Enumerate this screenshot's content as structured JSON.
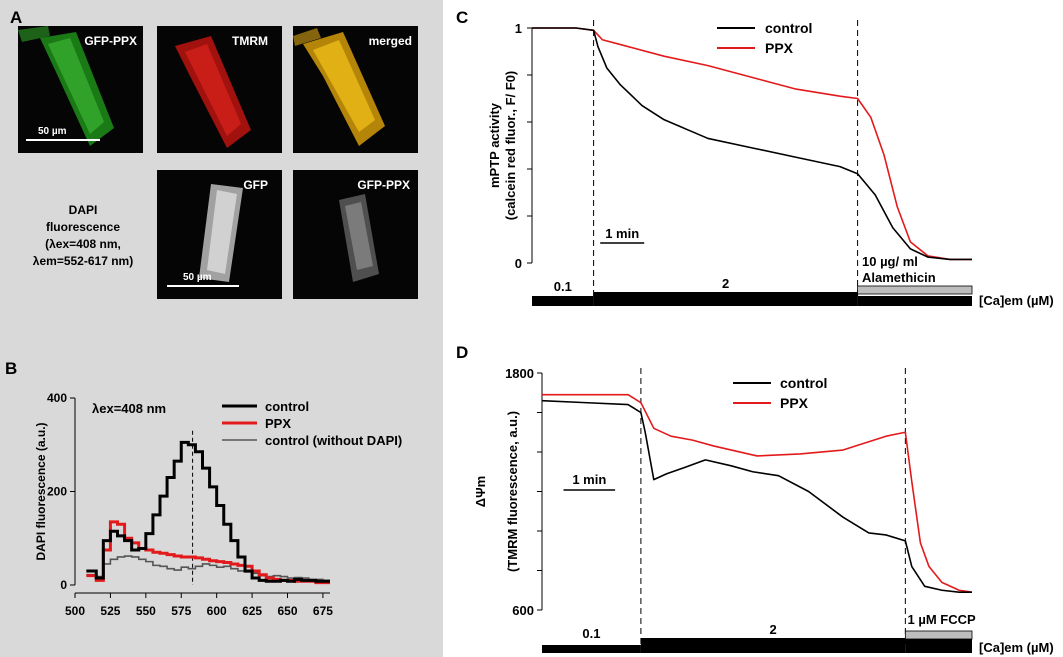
{
  "panels": {
    "a": "A",
    "b": "B",
    "c": "C",
    "d": "D"
  },
  "panelA": {
    "images": [
      {
        "caption": "GFP-PPX",
        "color": "#2fae22",
        "scale": "50  µm"
      },
      {
        "caption": "TMRM",
        "color": "#d11a16"
      },
      {
        "caption": "merged",
        "color": "#e8b30e"
      },
      {
        "caption": "GFP",
        "color": "#dddddd",
        "scale": "50  µm"
      },
      {
        "caption": "GFP-PPX",
        "color": "#8a8a8a"
      }
    ],
    "dapi_lines": [
      "DAPI",
      "fluorescence",
      "(λex=408  nm,",
      "λem=552-617  nm)"
    ]
  },
  "chart_data": [
    {
      "id": "B",
      "type": "line",
      "xlabel": "",
      "ylabel": "DAPI  fluorescence  (a.u.)",
      "annotation": "λex=408  nm",
      "xlim": [
        500,
        680
      ],
      "ylim": [
        0,
        400
      ],
      "xticks": [
        500,
        525,
        550,
        575,
        600,
        625,
        650,
        675
      ],
      "yticks": [
        0,
        200,
        400
      ],
      "vline_x": 583,
      "series": [
        {
          "name": "control",
          "color": "#000000",
          "x": [
            508,
            515,
            520,
            525,
            530,
            535,
            540,
            545,
            550,
            555,
            560,
            565,
            570,
            575,
            580,
            585,
            590,
            595,
            600,
            605,
            610,
            615,
            620,
            625,
            630,
            635,
            640,
            645,
            650,
            655,
            660,
            665,
            670,
            675
          ],
          "y": [
            30,
            15,
            95,
            115,
            105,
            95,
            75,
            78,
            110,
            150,
            190,
            230,
            265,
            305,
            300,
            285,
            250,
            210,
            170,
            130,
            95,
            60,
            30,
            15,
            10,
            8,
            8,
            10,
            8,
            12,
            10,
            10,
            8,
            8
          ]
        },
        {
          "name": "PPX",
          "color": "#e31a1c",
          "x": [
            508,
            515,
            520,
            525,
            530,
            535,
            540,
            545,
            550,
            555,
            560,
            565,
            570,
            575,
            580,
            585,
            590,
            595,
            600,
            605,
            610,
            615,
            620,
            625,
            630,
            635,
            640,
            645,
            650,
            655,
            660,
            665,
            670,
            675
          ],
          "y": [
            20,
            10,
            75,
            135,
            130,
            100,
            90,
            78,
            75,
            70,
            68,
            65,
            62,
            60,
            60,
            58,
            55,
            52,
            50,
            48,
            45,
            42,
            40,
            30,
            22,
            15,
            12,
            10,
            10,
            8,
            8,
            8,
            5,
            5
          ]
        },
        {
          "name": "control  (without  DAPI)",
          "color": "#555555",
          "x": [
            508,
            515,
            520,
            525,
            530,
            535,
            540,
            545,
            550,
            555,
            560,
            565,
            570,
            575,
            580,
            585,
            590,
            595,
            600,
            605,
            610,
            615,
            620,
            625,
            630,
            635,
            640,
            645,
            650,
            655,
            660,
            665,
            670,
            675
          ],
          "y": [
            22,
            18,
            45,
            55,
            60,
            62,
            60,
            55,
            50,
            42,
            40,
            35,
            32,
            38,
            35,
            40,
            45,
            42,
            38,
            40,
            35,
            30,
            28,
            25,
            20,
            18,
            20,
            18,
            15,
            16,
            15,
            12,
            12,
            10
          ]
        }
      ]
    },
    {
      "id": "C",
      "type": "line",
      "ylabel_lines": [
        "mPTP  activity",
        "(calcein  red  fluor.,  F/ F0)"
      ],
      "ylim": [
        0,
        1
      ],
      "yticks": [
        0,
        0.2,
        0.4,
        0.6,
        0.8,
        1
      ],
      "ytick_labels": [
        "0",
        "",
        "",
        "",
        "",
        "1"
      ],
      "xlim": [
        0,
        10
      ],
      "vlines": [
        1.4,
        7.4
      ],
      "scalebar_label": "1  min",
      "bar_labels": [
        "0.1",
        "2",
        "10  µg/  ml",
        "Alamethicin"
      ],
      "axis_label": "[Ca]em  (µM)",
      "series": [
        {
          "name": "control",
          "color": "#000000",
          "x": [
            0,
            1.0,
            1.4,
            1.5,
            1.7,
            2.0,
            2.5,
            3.0,
            3.5,
            4.0,
            5.0,
            6.0,
            7.0,
            7.4,
            7.8,
            8.2,
            8.6,
            9.0,
            9.5,
            10
          ],
          "y": [
            1.0,
            1.0,
            0.99,
            0.92,
            0.83,
            0.76,
            0.67,
            0.61,
            0.57,
            0.53,
            0.49,
            0.45,
            0.41,
            0.38,
            0.29,
            0.15,
            0.06,
            0.025,
            0.015,
            0.015
          ]
        },
        {
          "name": "PPX",
          "color": "#e31a1c",
          "x": [
            0,
            1.0,
            1.4,
            1.6,
            2.0,
            3.0,
            4.0,
            5.0,
            6.0,
            7.0,
            7.4,
            7.7,
            8.0,
            8.3,
            8.6,
            9.0,
            9.5,
            10
          ],
          "y": [
            1.0,
            1.0,
            0.99,
            0.95,
            0.93,
            0.88,
            0.84,
            0.79,
            0.74,
            0.71,
            0.7,
            0.62,
            0.46,
            0.24,
            0.09,
            0.03,
            0.015,
            0.015
          ]
        }
      ]
    },
    {
      "id": "D",
      "type": "line",
      "ylabel_lines": [
        "ΔΨm",
        "(TMRM  fluorescence,  a.u.)"
      ],
      "ylim": [
        600,
        1800
      ],
      "yticks": [
        600,
        800,
        1000,
        1200,
        1400,
        1600,
        1800
      ],
      "ytick_labels": [
        "600",
        "",
        "",
        "",
        "",
        "",
        "1800"
      ],
      "xlim": [
        0,
        10
      ],
      "vlines": [
        2.3,
        8.45
      ],
      "scalebar_label": "1  min",
      "bar_labels": [
        "0.1",
        "2",
        "1  µM   FCCP"
      ],
      "axis_label": "[Ca]em  (µM)",
      "series": [
        {
          "name": "control",
          "color": "#000000",
          "x": [
            0,
            1.0,
            2.0,
            2.3,
            2.4,
            2.6,
            2.9,
            3.3,
            3.8,
            4.4,
            4.9,
            5.5,
            6.2,
            7.0,
            7.6,
            8.0,
            8.45,
            8.6,
            8.9,
            9.3,
            9.7,
            10
          ],
          "y": [
            1660,
            1650,
            1640,
            1600,
            1500,
            1260,
            1290,
            1320,
            1360,
            1330,
            1300,
            1280,
            1200,
            1070,
            990,
            980,
            950,
            820,
            720,
            700,
            690,
            690
          ]
        },
        {
          "name": "PPX",
          "color": "#e31a1c",
          "x": [
            0,
            1.0,
            2.0,
            2.3,
            2.6,
            3.0,
            3.5,
            4.0,
            5.0,
            6.0,
            7.0,
            8.0,
            8.45,
            8.6,
            8.8,
            9.0,
            9.3,
            9.7,
            10
          ],
          "y": [
            1690,
            1690,
            1690,
            1650,
            1520,
            1480,
            1460,
            1430,
            1380,
            1390,
            1410,
            1480,
            1500,
            1250,
            940,
            820,
            740,
            700,
            690
          ]
        }
      ]
    }
  ]
}
